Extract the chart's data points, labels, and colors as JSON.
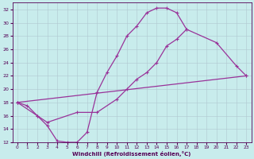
{
  "xlabel": "Windchill (Refroidissement éolien,°C)",
  "bg_color": "#c8ecec",
  "line_color": "#993399",
  "grid_color": "#b0c8d0",
  "xlim": [
    -0.5,
    23.5
  ],
  "ylim": [
    12,
    33
  ],
  "xticks": [
    0,
    1,
    2,
    3,
    4,
    5,
    6,
    7,
    8,
    9,
    10,
    11,
    12,
    13,
    14,
    15,
    16,
    17,
    18,
    19,
    20,
    21,
    22,
    23
  ],
  "yticks": [
    12,
    14,
    16,
    18,
    20,
    22,
    24,
    26,
    28,
    30,
    32
  ],
  "line1_x": [
    0,
    1,
    2,
    3,
    4,
    5,
    6,
    7,
    8,
    9,
    10,
    11,
    12,
    13,
    14,
    15,
    16,
    17
  ],
  "line1_y": [
    18.0,
    17.5,
    16.0,
    14.5,
    12.2,
    12.0,
    12.0,
    13.5,
    19.5,
    22.5,
    25.0,
    28.0,
    29.5,
    31.5,
    32.2,
    32.2,
    31.5,
    29.0
  ],
  "line2_x": [
    0,
    2,
    3,
    6,
    8,
    10,
    11,
    12,
    13,
    14,
    15,
    16,
    17,
    20,
    22,
    23
  ],
  "line2_y": [
    18.0,
    16.0,
    15.0,
    16.5,
    16.5,
    18.5,
    20.0,
    21.5,
    22.5,
    24.0,
    26.5,
    27.5,
    29.0,
    27.0,
    23.5,
    22.0
  ],
  "line3_x": [
    0,
    23
  ],
  "line3_y": [
    18.0,
    22.0
  ],
  "marker": "+",
  "markersize": 3,
  "linewidth": 0.9
}
